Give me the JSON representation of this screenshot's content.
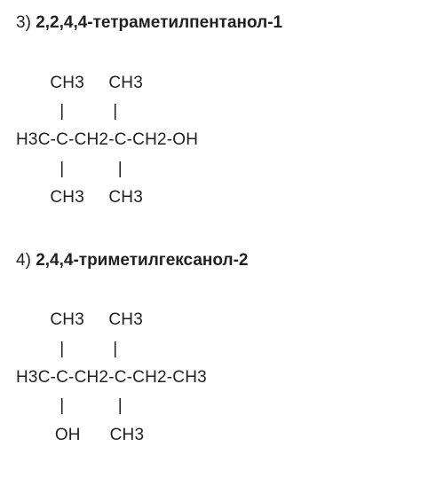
{
  "compounds": [
    {
      "number": "3)",
      "name": "2,2,4,4-тетраметилпентанол-1",
      "structure_lines": {
        "l1": "       CH3     CH3",
        "l2": "         |          |",
        "l3": "H3C-C-CH2-C-CH2-OH",
        "l4": "         |           |",
        "l5": "       CH3     CH3"
      }
    },
    {
      "number": "4)",
      "name": "2,4,4-триметилгексанол-2",
      "structure_lines": {
        "l1": "       CH3     CH3",
        "l2": "         |          |",
        "l3": "H3C-C-CH2-C-CH2-CH3",
        "l4": "         |           |",
        "l5": "        OH      CH3"
      }
    }
  ],
  "colors": {
    "background": "#ffffff",
    "text": "#212121"
  },
  "fonts": {
    "body_size": 19,
    "title_weight_bold": true
  }
}
